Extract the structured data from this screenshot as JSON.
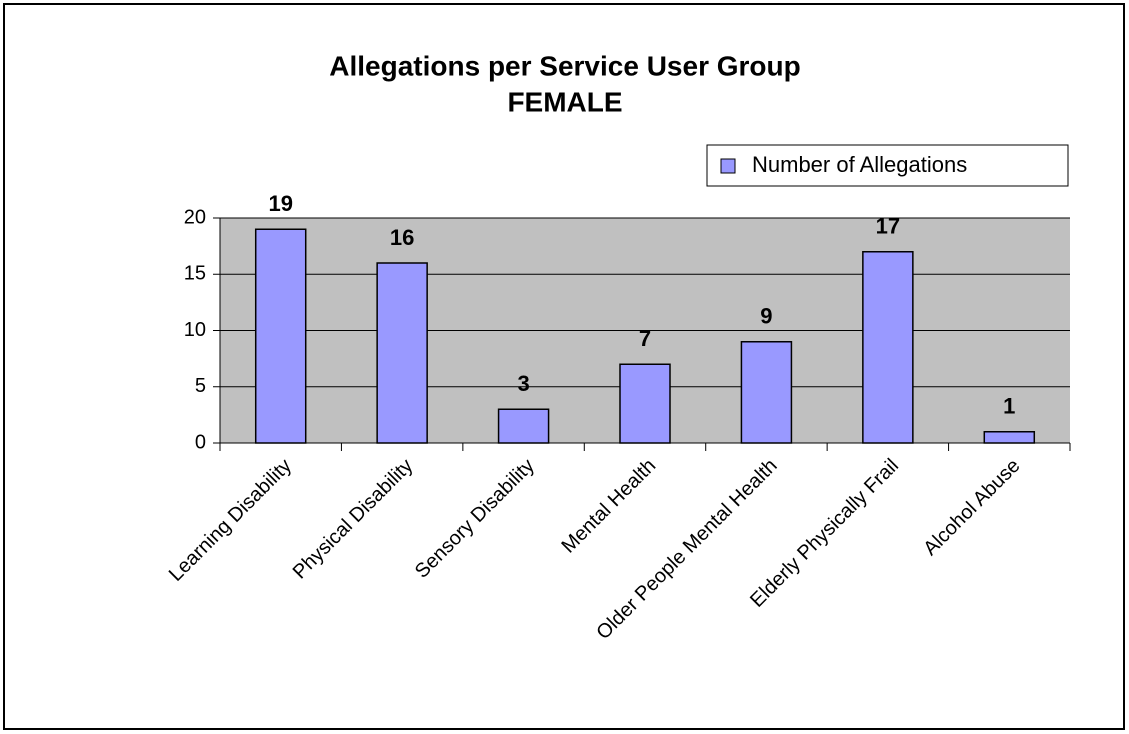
{
  "chart_data": {
    "type": "bar",
    "title": "Allegations per Service User Group",
    "subtitle": "FEMALE",
    "categories": [
      "Learning Disability",
      "Physical Disability",
      "Sensory Disability",
      "Mental Health",
      "Older People Mental Health",
      "Elderly Physically Frail",
      "Alcohol Abuse"
    ],
    "series": [
      {
        "name": "Number of Allegations",
        "color": "#9999ff",
        "values": [
          19,
          16,
          3,
          7,
          9,
          17,
          1
        ]
      }
    ],
    "ylim": [
      0,
      20
    ],
    "yticks": [
      0,
      5,
      10,
      15,
      20
    ],
    "grid": true,
    "legend": "top-right"
  }
}
